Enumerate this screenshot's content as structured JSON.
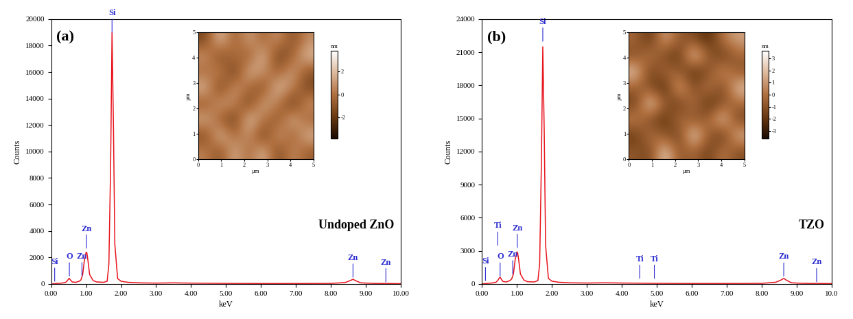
{
  "chart_data": [
    {
      "type": "line",
      "x_label": "keV",
      "y_label": "Counts",
      "annotations": [
        "(a)",
        "Undoped ZnO"
      ],
      "color": "#e8141e",
      "x": [
        0.0,
        0.1,
        0.2,
        0.3,
        0.4,
        0.45,
        0.5,
        0.52,
        0.55,
        0.6,
        0.7,
        0.8,
        0.85,
        0.9,
        0.95,
        1.0,
        1.02,
        1.05,
        1.1,
        1.2,
        1.3,
        1.5,
        1.6,
        1.65,
        1.7,
        1.74,
        1.78,
        1.82,
        1.9,
        2.0,
        2.2,
        2.5,
        3.0,
        3.5,
        4.0,
        5.0,
        6.0,
        7.0,
        8.0,
        8.4,
        8.55,
        8.63,
        8.7,
        8.85,
        9.2,
        9.5,
        9.57,
        9.65,
        10.0
      ],
      "values": [
        0,
        20,
        40,
        60,
        100,
        200,
        380,
        420,
        300,
        150,
        120,
        200,
        300,
        700,
        1800,
        2400,
        2350,
        1800,
        700,
        250,
        150,
        120,
        200,
        1500,
        9000,
        19000,
        12000,
        3000,
        400,
        200,
        120,
        80,
        60,
        80,
        60,
        40,
        30,
        30,
        40,
        100,
        250,
        350,
        250,
        80,
        40,
        30,
        40,
        30,
        20
      ],
      "xlim": [
        0,
        10
      ],
      "xticks": [
        {
          "value": 0,
          "label": "0.00"
        },
        {
          "value": 1,
          "label": "1.00"
        },
        {
          "value": 2,
          "label": "2.00"
        },
        {
          "value": 3,
          "label": "3.00"
        },
        {
          "value": 4,
          "label": "4.00"
        },
        {
          "value": 5,
          "label": "5.00"
        },
        {
          "value": 6,
          "label": "6.00"
        },
        {
          "value": 7,
          "label": "7.00"
        },
        {
          "value": 8,
          "label": "8.00"
        },
        {
          "value": 9,
          "label": "9.00"
        },
        {
          "value": 10,
          "label": "10.00"
        }
      ],
      "ylim": [
        0,
        20000
      ],
      "yticks": [
        0,
        2000,
        4000,
        6000,
        8000,
        10000,
        12000,
        14000,
        16000,
        18000,
        20000
      ],
      "peak_markers": {
        "color": "#2b2bd0",
        "items": [
          {
            "label": "Si",
            "energy": 0.1,
            "height": 200
          },
          {
            "label": "O",
            "energy": 0.52,
            "height": 600
          },
          {
            "label": "Zn",
            "energy": 0.88,
            "height": 600
          },
          {
            "label": "Zn",
            "energy": 1.01,
            "height": 2700
          },
          {
            "label": "Si",
            "energy": 1.74,
            "height": 19000
          },
          {
            "label": "Zn",
            "energy": 8.63,
            "height": 500
          },
          {
            "label": "Zn",
            "energy": 9.57,
            "height": 150
          }
        ]
      },
      "afm": {
        "x_label": "µm",
        "y_label": "µm",
        "xlim": [
          0,
          5
        ],
        "ylim": [
          0,
          5
        ],
        "xticks": [
          0,
          1,
          2,
          3,
          4,
          5
        ],
        "yticks": [
          0,
          1,
          2,
          3,
          4,
          5
        ],
        "colorbar_label": "nm",
        "colorbar_range": [
          -3.8,
          3.8
        ],
        "colorbar_ticks": [
          -2,
          0,
          2
        ],
        "cells": [
          [
            0.5,
            -1.2,
            1.8,
            -0.4,
            2.1,
            -1.6,
            0.9,
            -0.7
          ],
          [
            -1.4,
            2.2,
            -0.3,
            1.1,
            -2.0,
            1.5,
            -0.8,
            1.9
          ],
          [
            1.7,
            -0.6,
            -1.9,
            2.4,
            0.2,
            -1.1,
            2.0,
            -0.5
          ],
          [
            -0.9,
            1.3,
            0.7,
            -1.7,
            1.6,
            0.4,
            -2.2,
            1.0
          ],
          [
            2.0,
            -1.8,
            1.2,
            -0.2,
            -1.3,
            2.3,
            0.6,
            -1.5
          ],
          [
            -0.3,
            0.8,
            -2.1,
            1.9,
            0.9,
            -0.7,
            1.4,
            -1.0
          ],
          [
            1.1,
            -1.5,
            0.3,
            -0.9,
            2.2,
            -1.9,
            -0.4,
            2.1
          ],
          [
            -1.6,
            2.4,
            -0.8,
            1.5,
            -0.6,
            1.2,
            -1.3,
            0.7
          ]
        ]
      }
    },
    {
      "type": "line",
      "x_label": "keV",
      "y_label": "Counts",
      "annotations": [
        "(b)",
        "TZO"
      ],
      "color": "#e8141e",
      "x": [
        0.0,
        0.1,
        0.2,
        0.3,
        0.4,
        0.45,
        0.5,
        0.52,
        0.55,
        0.6,
        0.7,
        0.8,
        0.85,
        0.9,
        0.95,
        1.0,
        1.02,
        1.05,
        1.1,
        1.2,
        1.3,
        1.5,
        1.6,
        1.65,
        1.7,
        1.74,
        1.78,
        1.82,
        1.9,
        2.0,
        2.2,
        2.5,
        3.0,
        3.5,
        4.0,
        5.0,
        6.0,
        7.0,
        8.0,
        8.4,
        8.55,
        8.63,
        8.7,
        8.85,
        9.2,
        9.5,
        9.57,
        9.65,
        10.0
      ],
      "values": [
        0,
        30,
        60,
        90,
        150,
        300,
        550,
        600,
        450,
        220,
        180,
        300,
        450,
        900,
        2200,
        2900,
        2850,
        2200,
        900,
        350,
        200,
        180,
        300,
        1800,
        11000,
        21500,
        14000,
        3500,
        500,
        250,
        150,
        100,
        80,
        100,
        80,
        50,
        40,
        40,
        50,
        150,
        350,
        500,
        350,
        100,
        50,
        40,
        50,
        40,
        30
      ],
      "xlim": [
        0,
        10
      ],
      "xticks": [
        {
          "value": 0,
          "label": "0.00"
        },
        {
          "value": 1,
          "label": "1.00"
        },
        {
          "value": 2,
          "label": "2.00"
        },
        {
          "value": 3,
          "label": "3.00"
        },
        {
          "value": 4,
          "label": "4.00"
        },
        {
          "value": 5,
          "label": "5.00"
        },
        {
          "value": 6,
          "label": "6.00"
        },
        {
          "value": 7,
          "label": "7.00"
        },
        {
          "value": 8,
          "label": "8.00"
        },
        {
          "value": 9,
          "label": "9.00"
        },
        {
          "value": 10,
          "label": "10.0"
        }
      ],
      "ylim": [
        0,
        24000
      ],
      "yticks": [
        0,
        3000,
        6000,
        9000,
        12000,
        15000,
        18000,
        21000,
        24000
      ],
      "peak_markers": {
        "color": "#2b2bd0",
        "items": [
          {
            "label": "Si",
            "energy": 0.1,
            "height": 300
          },
          {
            "label": "Ti",
            "energy": 0.45,
            "height": 3500
          },
          {
            "label": "O",
            "energy": 0.52,
            "height": 700
          },
          {
            "label": "Zn",
            "energy": 0.88,
            "height": 900
          },
          {
            "label": "Zn",
            "energy": 1.01,
            "height": 3300
          },
          {
            "label": "Si",
            "energy": 1.74,
            "height": 22000
          },
          {
            "label": "Ti",
            "energy": 4.51,
            "height": 500
          },
          {
            "label": "Ti",
            "energy": 4.93,
            "height": 500
          },
          {
            "label": "Zn",
            "energy": 8.63,
            "height": 700
          },
          {
            "label": "Zn",
            "energy": 9.57,
            "height": 200
          }
        ]
      },
      "afm": {
        "x_label": "µm",
        "y_label": "µm",
        "xlim": [
          0,
          5
        ],
        "ylim": [
          0,
          5
        ],
        "xticks": [
          0,
          1,
          2,
          3,
          4,
          5
        ],
        "yticks": [
          0,
          1,
          2,
          3,
          4,
          5
        ],
        "colorbar_label": "nm",
        "colorbar_range": [
          -3.6,
          3.6
        ],
        "colorbar_ticks": [
          -3,
          -2,
          -1,
          0,
          1,
          2,
          3
        ],
        "cells": [
          [
            -0.8,
            -1.5,
            2.6,
            -1.0,
            -0.3,
            -1.8,
            0.4,
            -1.2
          ],
          [
            -1.9,
            0.2,
            -0.9,
            -1.6,
            2.9,
            -0.7,
            -2.1,
            1.8
          ],
          [
            0.6,
            -1.3,
            -2.2,
            0.1,
            -1.1,
            -0.4,
            2.4,
            -1.5
          ],
          [
            -1.7,
            2.8,
            -0.6,
            -1.9,
            0.3,
            -2.4,
            -0.8,
            -0.2
          ],
          [
            -0.5,
            -1.0,
            -2.6,
            1.9,
            -1.4,
            0.5,
            -1.6,
            2.2
          ],
          [
            2.3,
            -1.8,
            0.0,
            -0.7,
            -2.3,
            -1.2,
            1.1,
            -0.9
          ],
          [
            -1.2,
            0.4,
            -1.5,
            -2.0,
            2.7,
            -0.6,
            -1.9,
            -0.4
          ],
          [
            -0.3,
            -2.2,
            1.6,
            -0.8,
            -1.1,
            -2.5,
            0.2,
            1.3
          ]
        ]
      }
    }
  ]
}
